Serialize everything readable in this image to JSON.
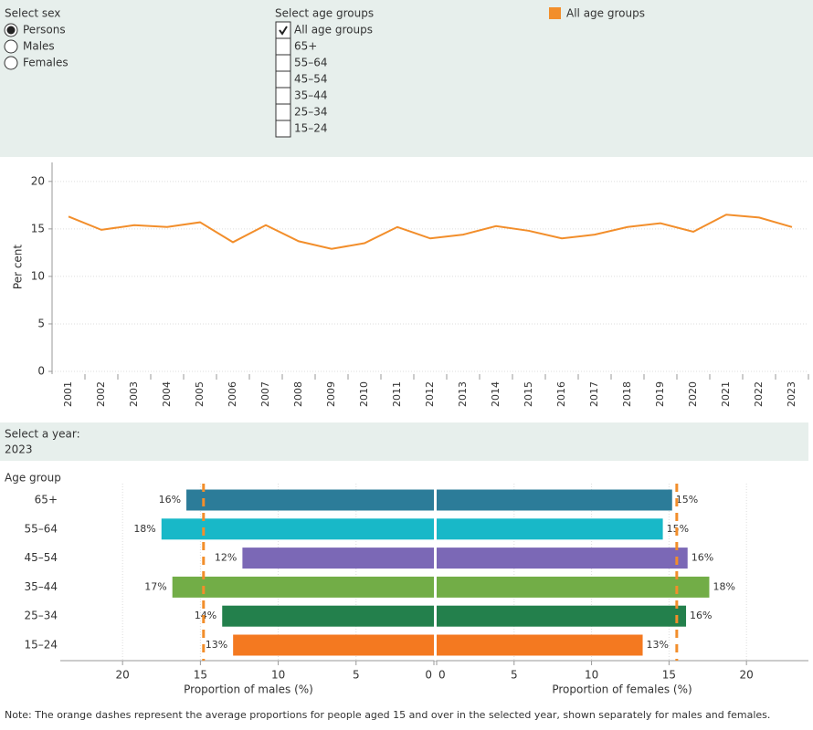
{
  "filters": {
    "sex": {
      "label": "Select sex",
      "options": [
        "Persons",
        "Males",
        "Females"
      ],
      "selected": 0
    },
    "age_groups": {
      "label": "Select age groups",
      "options": [
        "All age groups",
        "65+",
        "55–64",
        "45–54",
        "35–44",
        "25–34",
        "15–24"
      ],
      "checked": [
        true,
        false,
        false,
        false,
        false,
        false,
        false
      ]
    },
    "year": {
      "label": "Select a year:",
      "value": "2023"
    }
  },
  "chart_data": [
    {
      "type": "line",
      "y_label": "Per cent",
      "x": [
        "2001",
        "2002",
        "2003",
        "2004",
        "2005",
        "2006",
        "2007",
        "2008",
        "2009",
        "2010",
        "2011",
        "2012",
        "2013",
        "2014",
        "2015",
        "2016",
        "2017",
        "2018",
        "2019",
        "2020",
        "2021",
        "2022",
        "2023"
      ],
      "series": [
        {
          "name": "All age groups",
          "color": "#f28e2b",
          "values": [
            16.3,
            14.9,
            15.4,
            15.2,
            15.7,
            13.6,
            15.4,
            13.7,
            12.9,
            13.5,
            15.2,
            14.0,
            14.4,
            15.3,
            14.8,
            14.0,
            14.4,
            15.2,
            15.6,
            14.7,
            16.5,
            16.2,
            15.2
          ]
        }
      ],
      "ylim": [
        0,
        22
      ],
      "yticks": [
        0,
        5,
        10,
        15,
        20
      ],
      "grid": true
    },
    {
      "type": "butterfly",
      "y_label": "Age group",
      "categories": [
        "65+",
        "55–64",
        "45–54",
        "35–44",
        "25–34",
        "15–24"
      ],
      "colors": [
        "#2c7c99",
        "#18b8c8",
        "#7b68b6",
        "#72ad47",
        "#23804c",
        "#f47920"
      ],
      "average_color": "#f28e2b",
      "left": {
        "label": "Proportion of males (%)",
        "values": [
          15.9,
          17.5,
          12.3,
          16.8,
          13.6,
          12.9
        ],
        "value_labels": [
          "16%",
          "18%",
          "12%",
          "17%",
          "14%",
          "13%"
        ],
        "average": 14.8,
        "xlim": [
          0,
          24
        ],
        "xticks": [
          0,
          5,
          10,
          15,
          20
        ]
      },
      "right": {
        "label": "Proportion of females (%)",
        "values": [
          15.2,
          14.6,
          16.2,
          17.6,
          16.1,
          13.3
        ],
        "value_labels": [
          "15%",
          "15%",
          "16%",
          "18%",
          "16%",
          "13%"
        ],
        "average": 15.5,
        "xlim": [
          0,
          24
        ],
        "xticks": [
          0,
          5,
          10,
          15,
          20
        ]
      },
      "grid": true
    }
  ],
  "note": "Note: The orange dashes represent the average proportions for people aged 15 and over in the selected year, shown separately for males and females."
}
